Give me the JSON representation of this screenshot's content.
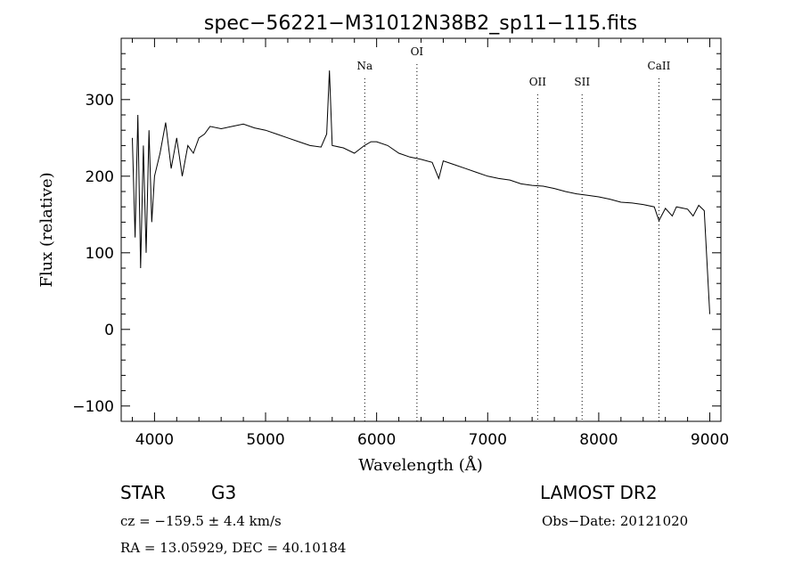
{
  "chart_data": {
    "type": "line",
    "title": "spec−56221−M31012N38B2_sp11−115.fits",
    "xlabel": "Wavelength (Å)",
    "ylabel": "Flux (relative)",
    "xlim": [
      3700,
      9100
    ],
    "ylim": [
      -120,
      380
    ],
    "x_ticks": [
      4000,
      5000,
      6000,
      7000,
      8000,
      9000
    ],
    "y_ticks": [
      -100,
      0,
      100,
      200,
      300
    ],
    "x_tick_labels": [
      "4000",
      "5000",
      "6000",
      "7000",
      "8000",
      "9000"
    ],
    "y_tick_labels": [
      "−100",
      "0",
      "100",
      "200",
      "300"
    ],
    "grid": false,
    "series": [
      {
        "x": [
          3800,
          3825,
          3850,
          3875,
          3900,
          3925,
          3950,
          3975,
          4000,
          4050,
          4100,
          4150,
          4200,
          4250,
          4300,
          4350,
          4400,
          4450,
          4500,
          4600,
          4700,
          4800,
          4900,
          5000,
          5100,
          5200,
          5300,
          5400,
          5500,
          5550,
          5575,
          5600,
          5700,
          5800,
          5890,
          5950,
          6000,
          6100,
          6200,
          6300,
          6400,
          6500,
          6560,
          6600,
          6700,
          6800,
          6900,
          7000,
          7100,
          7200,
          7300,
          7400,
          7500,
          7600,
          7700,
          7800,
          7900,
          8000,
          8100,
          8200,
          8300,
          8400,
          8500,
          8542,
          8600,
          8662,
          8700,
          8800,
          8850,
          8900,
          8950,
          9000
        ],
        "y": [
          250,
          120,
          280,
          80,
          240,
          100,
          260,
          140,
          200,
          230,
          270,
          210,
          250,
          200,
          240,
          230,
          250,
          255,
          265,
          262,
          265,
          268,
          263,
          260,
          255,
          250,
          245,
          240,
          238,
          255,
          338,
          240,
          237,
          230,
          240,
          245,
          245,
          240,
          230,
          225,
          222,
          218,
          197,
          220,
          215,
          210,
          205,
          200,
          197,
          195,
          190,
          188,
          187,
          184,
          180,
          177,
          175,
          173,
          170,
          166,
          165,
          163,
          160,
          142,
          158,
          148,
          160,
          157,
          148,
          162,
          155,
          20
        ]
      }
    ],
    "line_markers": [
      {
        "label": "Na",
        "x": 5893
      },
      {
        "label": "OI",
        "x": 6363
      },
      {
        "label": "OII",
        "x": 7450
      },
      {
        "label": "SII",
        "x": 7850
      },
      {
        "label": "CaII",
        "x": 8542
      }
    ]
  },
  "info": {
    "object_class": "STAR",
    "subclass": "G3",
    "survey": "LAMOST DR2",
    "cz_text": "cz = −159.5 ± 4.4 km/s",
    "obs_date": "Obs−Date: 20121020",
    "radec": "RA =  13.05929, DEC =  40.10184"
  }
}
